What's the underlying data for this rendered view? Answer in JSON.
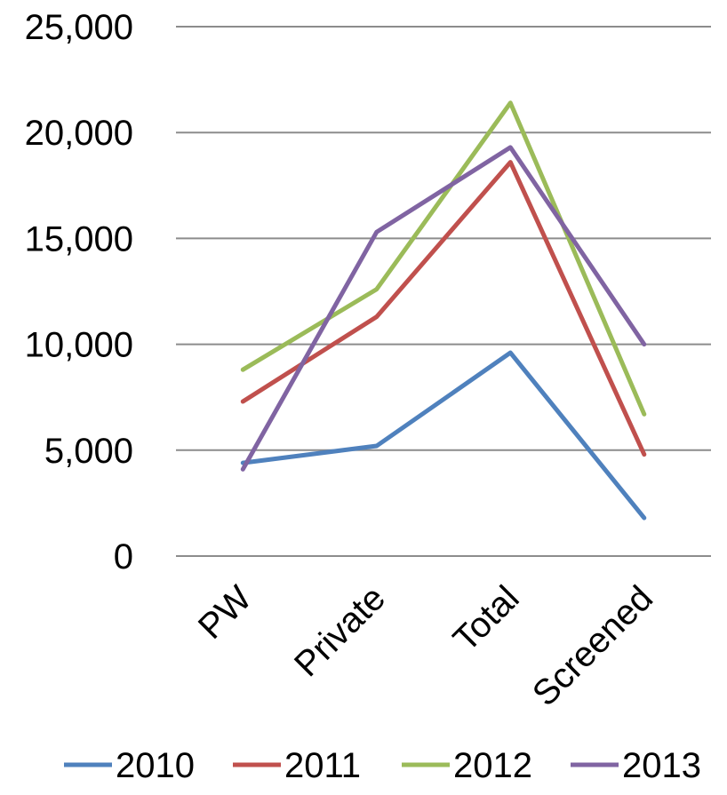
{
  "chart_data": {
    "type": "line",
    "categories": [
      "PW",
      "Private",
      "Total",
      "Screened"
    ],
    "series": [
      {
        "name": "2010",
        "values": [
          4400,
          5200,
          9600,
          1800
        ],
        "color": "#4F81BD"
      },
      {
        "name": "2011",
        "values": [
          7300,
          11300,
          18600,
          4800
        ],
        "color": "#C0504D"
      },
      {
        "name": "2012",
        "values": [
          8800,
          12600,
          21400,
          6700
        ],
        "color": "#9BBB59"
      },
      {
        "name": "2013",
        "values": [
          4100,
          15300,
          19300,
          10000
        ],
        "color": "#8064A2"
      }
    ],
    "ylim": [
      0,
      25000
    ],
    "yticks": [
      "0",
      "5,000",
      "10,000",
      "15,000",
      "20,000",
      "25,000"
    ],
    "grid": true,
    "legend_position": "bottom"
  }
}
